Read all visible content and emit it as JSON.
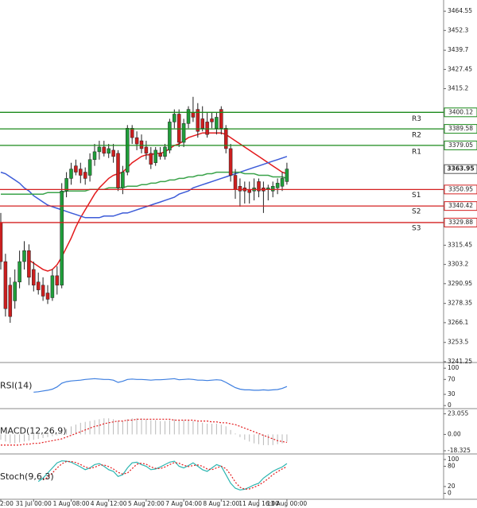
{
  "chart_data": [
    {
      "type": "candlestick",
      "categories": [
        "2:00",
        null,
        null,
        null,
        null,
        null,
        null,
        "31 Jul 00:00",
        null,
        null,
        null,
        null,
        null,
        null,
        null,
        "1 Aug 08:00",
        null,
        null,
        null,
        null,
        null,
        null,
        null,
        "4 Aug 12:00",
        null,
        null,
        null,
        null,
        null,
        null,
        null,
        "5 Aug 20:00",
        null,
        null,
        null,
        null,
        null,
        null,
        null,
        "7 Aug 04:00",
        null,
        null,
        null,
        null,
        null,
        null,
        null,
        "8 Aug 12:00",
        null,
        null,
        null,
        null,
        null,
        null,
        null,
        "11 Aug 16:00",
        null,
        null,
        null,
        null,
        null,
        "13 Aug 00:00"
      ],
      "open": [
        3330,
        3305,
        3290,
        3280,
        3292,
        3305,
        3312,
        3300,
        3292,
        3290,
        3285,
        3282,
        3296,
        3290,
        3350,
        3358,
        3366,
        3364,
        3362,
        3360,
        3370,
        3375,
        3378,
        3374,
        3376,
        3374,
        3352,
        3362,
        3390,
        3384,
        3382,
        3378,
        3374,
        3368,
        3374,
        3372,
        3376,
        3394,
        3399,
        3381,
        3393,
        3400,
        3402,
        3396,
        3394,
        3396,
        3390,
        3402,
        3390,
        3377,
        3360,
        3353,
        3352,
        3351,
        3350,
        3356,
        3352,
        3351,
        3350,
        3352,
        3353,
        3356
      ],
      "high": [
        3336,
        3310,
        3295,
        3300,
        3312,
        3318,
        3316,
        3305,
        3298,
        3295,
        3290,
        3300,
        3302,
        3355,
        3362,
        3368,
        3370,
        3368,
        3365,
        3374,
        3380,
        3382,
        3382,
        3380,
        3380,
        3376,
        3366,
        3392,
        3392,
        3388,
        3386,
        3382,
        3378,
        3378,
        3378,
        3380,
        3396,
        3402,
        3402,
        3396,
        3404,
        3410,
        3406,
        3404,
        3400,
        3400,
        3400,
        3404,
        3392,
        3380,
        3364,
        3358,
        3356,
        3356,
        3358,
        3358,
        3356,
        3354,
        3356,
        3358,
        3362,
        3368
      ],
      "low": [
        3300,
        3270,
        3266,
        3275,
        3288,
        3300,
        3290,
        3286,
        3284,
        3280,
        3278,
        3280,
        3284,
        3288,
        3346,
        3354,
        3360,
        3355,
        3354,
        3356,
        3366,
        3370,
        3372,
        3371,
        3368,
        3350,
        3348,
        3360,
        3380,
        3376,
        3374,
        3370,
        3364,
        3366,
        3370,
        3370,
        3374,
        3390,
        3378,
        3378,
        3390,
        3394,
        3384,
        3388,
        3384,
        3390,
        3386,
        3386,
        3374,
        3356,
        3345,
        3340,
        3342,
        3342,
        3344,
        3346,
        3336,
        3344,
        3346,
        3348,
        3350,
        3354
      ],
      "close": [
        3305,
        3275,
        3270,
        3292,
        3305,
        3312,
        3295,
        3290,
        3287,
        3283,
        3281,
        3296,
        3290,
        3350,
        3358,
        3364,
        3362,
        3360,
        3358,
        3370,
        3375,
        3378,
        3374,
        3377,
        3372,
        3352,
        3362,
        3390,
        3384,
        3380,
        3377,
        3374,
        3367,
        3376,
        3372,
        3378,
        3394,
        3399,
        3381,
        3393,
        3402,
        3397,
        3388,
        3390,
        3386,
        3394,
        3397,
        3390,
        3377,
        3360,
        3351,
        3350,
        3350,
        3349,
        3352,
        3350,
        3350,
        3352,
        3353,
        3355,
        3358,
        3364
      ],
      "up_color": "#1f9e3a",
      "down_color": "#cc1f1f",
      "series": [
        {
          "color": "#e31a1c",
          "values": [
            null,
            null,
            null,
            null,
            null,
            null,
            3306,
            3304,
            3302,
            3300,
            3299,
            3300,
            3303,
            3308,
            3314,
            3320,
            3327,
            3333,
            3338,
            3343,
            3348,
            3352,
            3355,
            3358,
            3360,
            3361,
            3362,
            3365,
            3368,
            3370,
            3372,
            3373,
            3373,
            3374,
            3374,
            3375,
            3377,
            3379,
            3380,
            3382,
            3384,
            3385,
            3386,
            3387,
            3387,
            3387,
            3387,
            3387,
            3386,
            3384,
            3382,
            3380,
            3378,
            3376,
            3374,
            3372,
            3370,
            3368,
            3366,
            3364,
            3362,
            3361
          ]
        },
        {
          "color": "#3c5bd8",
          "values": [
            3362,
            3361,
            3359,
            3357,
            3355,
            3352,
            3350,
            3347,
            3345,
            3343,
            3341,
            3340,
            3339,
            3338,
            3337,
            3336,
            3335,
            3334,
            3333,
            3333,
            3333,
            3333,
            3334,
            3334,
            3334,
            3335,
            3336,
            3336,
            3337,
            3338,
            3339,
            3340,
            3341,
            3342,
            3343,
            3344,
            3345,
            3346,
            3348,
            3349,
            3350,
            3352,
            3353,
            3354,
            3355,
            3356,
            3357,
            3358,
            3359,
            3360,
            3361,
            3362,
            3363,
            3364,
            3365,
            3366,
            3367,
            3368,
            3369,
            3370,
            3371,
            3372
          ]
        },
        {
          "color": "#3aa34a",
          "values": [
            3348,
            3348,
            3348,
            3348,
            3348,
            3348,
            3348,
            3348,
            3348,
            3348,
            3349,
            3349,
            3349,
            3349,
            3350,
            3350,
            3350,
            3350,
            3350,
            3351,
            3351,
            3351,
            3351,
            3352,
            3352,
            3352,
            3352,
            3353,
            3353,
            3353,
            3354,
            3354,
            3355,
            3355,
            3356,
            3356,
            3357,
            3357,
            3358,
            3358,
            3359,
            3359,
            3360,
            3360,
            3361,
            3361,
            3362,
            3362,
            3362,
            3362,
            3362,
            3362,
            3361,
            3361,
            3361,
            3360,
            3360,
            3360,
            3359,
            3359,
            3359,
            3358
          ]
        }
      ],
      "levels": [
        {
          "label": "R3",
          "value": 3400.12,
          "color": "#1b8a1b"
        },
        {
          "label": "R2",
          "value": 3389.58,
          "color": "#1b8a1b"
        },
        {
          "label": "R1",
          "value": 3379.05,
          "color": "#1b8a1b"
        },
        {
          "label": "S1",
          "value": 3350.95,
          "color": "#d42020"
        },
        {
          "label": "S2",
          "value": 3340.42,
          "color": "#d42020"
        },
        {
          "label": "S3",
          "value": 3329.88,
          "color": "#d42020"
        }
      ],
      "last_price": 3363.95,
      "ylim": [
        3240.7,
        3471.7
      ],
      "yticks": [
        3464.55,
        3452.3,
        3439.7,
        3427.45,
        3415.2,
        3315.45,
        3303.2,
        3290.95,
        3278.35,
        3266.1,
        3253.5,
        3241.25
      ]
    },
    {
      "type": "line",
      "title": "RSI(14)",
      "ylim": [
        -6,
        111
      ],
      "yticks": [
        100,
        70,
        30,
        0
      ],
      "series": [
        {
          "color": "#3c7ee0",
          "values": [
            null,
            null,
            null,
            null,
            null,
            null,
            null,
            36,
            37,
            39,
            41,
            44,
            50,
            60,
            64,
            66,
            67,
            68,
            70,
            71,
            72,
            71,
            70,
            70,
            68,
            62,
            65,
            70,
            71,
            70,
            70,
            69,
            68,
            69,
            69,
            70,
            71,
            72,
            69,
            70,
            71,
            70,
            68,
            68,
            67,
            68,
            69,
            68,
            62,
            55,
            48,
            44,
            42,
            42,
            41,
            41,
            42,
            41,
            42,
            43,
            46,
            51
          ]
        }
      ]
    },
    {
      "type": "line",
      "title": "MACD(12,26,9)",
      "ylim": [
        -21,
        28
      ],
      "yticks": [
        23.055,
        {
          "value": 0,
          "label": "0.00"
        },
        -18.325
      ],
      "series": [
        {
          "style": "bar",
          "color": "#b8b8b8",
          "values": [
            -6,
            -8,
            -10,
            -10,
            -9,
            -8,
            -7,
            -6,
            -5,
            -4,
            -3,
            -2,
            -1,
            2,
            6,
            9,
            11,
            13,
            14,
            15,
            16,
            17,
            18,
            18,
            17,
            15,
            15,
            17,
            18,
            18,
            18,
            17,
            16,
            16,
            15,
            15,
            16,
            17,
            16,
            16,
            16,
            15,
            14,
            13,
            12,
            12,
            12,
            11,
            9,
            5,
            1,
            -3,
            -6,
            -8,
            -10,
            -11,
            -12,
            -12,
            -12,
            -11,
            -10,
            -8
          ]
        },
        {
          "dash": true,
          "color": "#e31a1c",
          "values": [
            -12,
            -12,
            -12,
            -12,
            -12,
            -11,
            -11,
            -10,
            -10,
            -9,
            -8,
            -7,
            -6,
            -5,
            -3,
            -1,
            1,
            3,
            5,
            7,
            9,
            10,
            12,
            13,
            14,
            15,
            15,
            16,
            16,
            17,
            17,
            17,
            17,
            17,
            17,
            17,
            17,
            16,
            16,
            16,
            16,
            16,
            15,
            15,
            15,
            14,
            14,
            13,
            13,
            12,
            11,
            9,
            7,
            5,
            3,
            1,
            -1,
            -3,
            -5,
            -7,
            -8,
            -9
          ]
        }
      ]
    },
    {
      "type": "line",
      "title": "Stoch(9,6,3)",
      "ylim": [
        -17.6,
        114.1
      ],
      "yticks": [
        100,
        80,
        20,
        0
      ],
      "series": [
        {
          "color": "#2bb5b0",
          "values": [
            null,
            null,
            null,
            null,
            null,
            null,
            null,
            null,
            35,
            45,
            60,
            75,
            90,
            96,
            95,
            92,
            85,
            78,
            70,
            75,
            85,
            88,
            80,
            70,
            65,
            50,
            55,
            75,
            90,
            92,
            85,
            80,
            70,
            72,
            78,
            85,
            92,
            95,
            80,
            75,
            82,
            90,
            80,
            70,
            65,
            75,
            85,
            80,
            55,
            30,
            15,
            10,
            12,
            18,
            25,
            30,
            45,
            55,
            65,
            72,
            78,
            88
          ]
        },
        {
          "dash": true,
          "color": "#e31a1c",
          "values": [
            null,
            null,
            null,
            null,
            null,
            null,
            null,
            null,
            null,
            40,
            47,
            60,
            75,
            87,
            94,
            94,
            91,
            85,
            78,
            74,
            77,
            83,
            84,
            79,
            72,
            62,
            57,
            60,
            73,
            86,
            89,
            86,
            78,
            74,
            73,
            78,
            85,
            91,
            89,
            83,
            79,
            82,
            84,
            80,
            72,
            70,
            75,
            80,
            73,
            55,
            33,
            18,
            12,
            13,
            18,
            24,
            33,
            43,
            55,
            64,
            72,
            79
          ]
        }
      ]
    }
  ]
}
